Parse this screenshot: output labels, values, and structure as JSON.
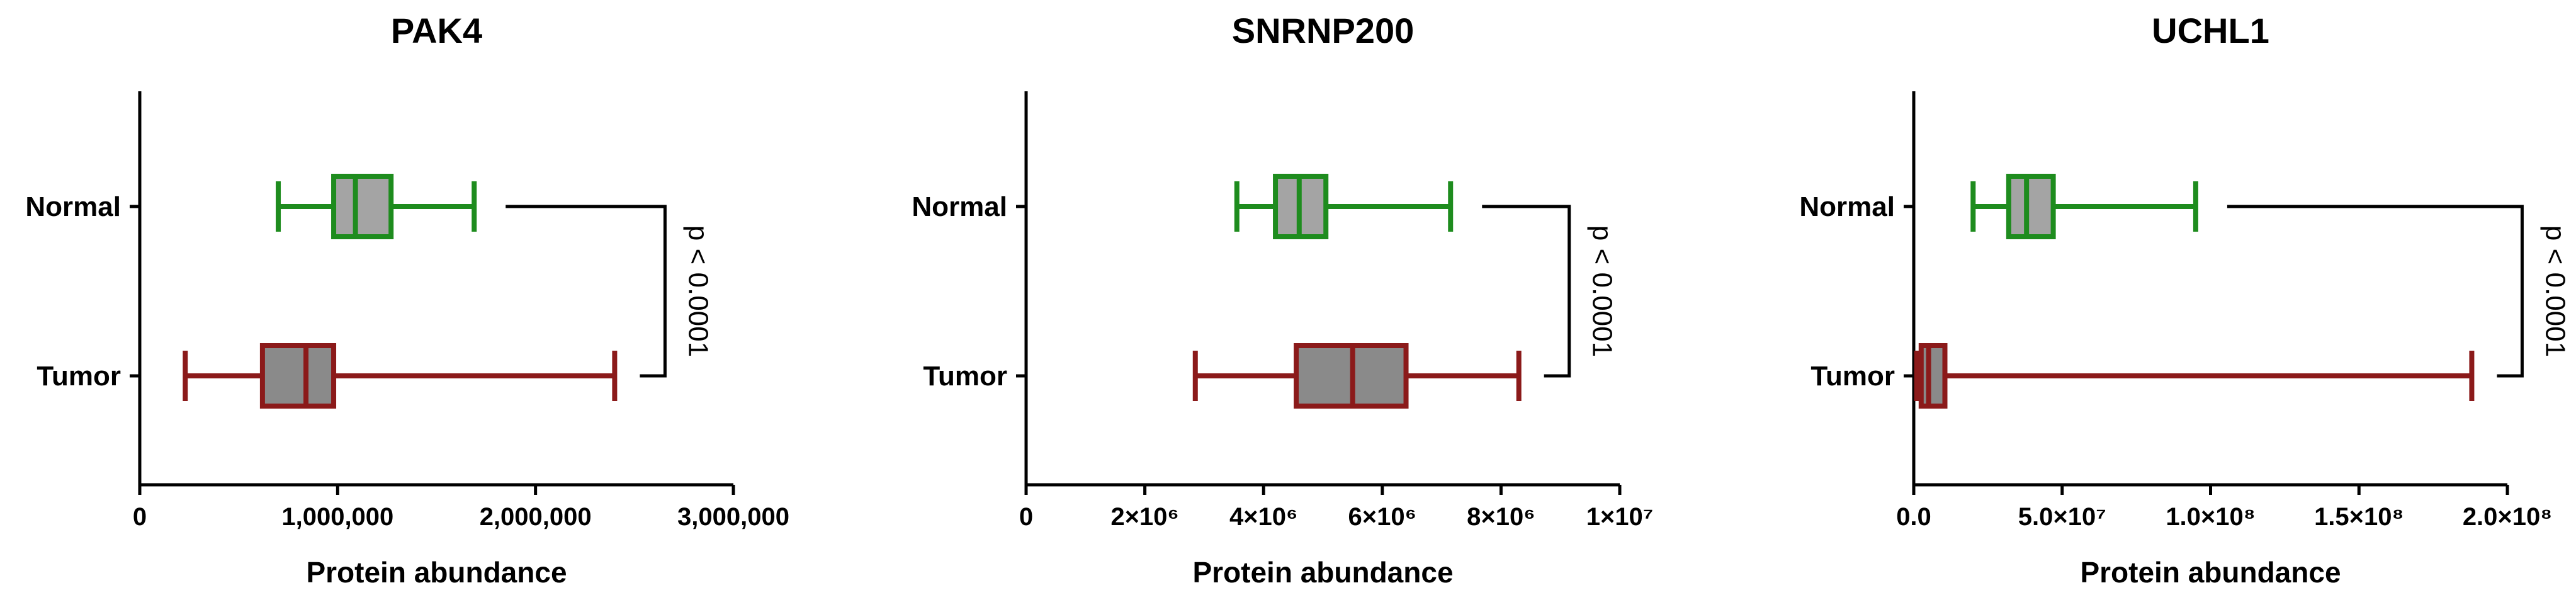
{
  "chart_data": [
    {
      "type": "box",
      "title": "PAK4",
      "xlabel": "Protein abundance",
      "xlim": [
        0,
        3000000
      ],
      "xticks": [
        {
          "value": 0,
          "label": "0"
        },
        {
          "value": 1000000,
          "label": "1,000,000"
        },
        {
          "value": 2000000,
          "label": "2,000,000"
        },
        {
          "value": 3000000,
          "label": "3,000,000"
        }
      ],
      "categories": [
        "Normal",
        "Tumor"
      ],
      "boxes": [
        {
          "name": "Normal",
          "min": 700000,
          "q1": 980000,
          "median": 1090000,
          "q3": 1270000,
          "max": 1690000,
          "color": "#1e8c1e"
        },
        {
          "name": "Tumor",
          "min": 230000,
          "q1": 620000,
          "median": 840000,
          "q3": 980000,
          "max": 2400000,
          "color": "#8b1a1a"
        }
      ],
      "annotation": "p < 0.0001"
    },
    {
      "type": "box",
      "title": "SNRNP200",
      "xlabel": "Protein abundance",
      "xlim": [
        0,
        10000000
      ],
      "xticks": [
        {
          "value": 0,
          "label": "0"
        },
        {
          "value": 2000000,
          "label": "2×10⁶"
        },
        {
          "value": 4000000,
          "label": "4×10⁶"
        },
        {
          "value": 6000000,
          "label": "6×10⁶"
        },
        {
          "value": 8000000,
          "label": "8×10⁶"
        },
        {
          "value": 10000000,
          "label": "1×10⁷"
        }
      ],
      "categories": [
        "Normal",
        "Tumor"
      ],
      "boxes": [
        {
          "name": "Normal",
          "min": 3550000,
          "q1": 4200000,
          "median": 4600000,
          "q3": 5050000,
          "max": 7150000,
          "color": "#1e8c1e"
        },
        {
          "name": "Tumor",
          "min": 2850000,
          "q1": 4550000,
          "median": 5500000,
          "q3": 6400000,
          "max": 8300000,
          "color": "#8b1a1a"
        }
      ],
      "annotation": "p < 0.0001"
    },
    {
      "type": "box",
      "title": "UCHL1",
      "xlabel": "Protein abundance",
      "xlim": [
        0,
        200000000
      ],
      "xticks": [
        {
          "value": 0,
          "label": "0.0"
        },
        {
          "value": 50000000,
          "label": "5.0×10⁷"
        },
        {
          "value": 100000000,
          "label": "1.0×10⁸"
        },
        {
          "value": 150000000,
          "label": "1.5×10⁸"
        },
        {
          "value": 200000000,
          "label": "2.0×10⁸"
        }
      ],
      "categories": [
        "Normal",
        "Tumor"
      ],
      "boxes": [
        {
          "name": "Normal",
          "min": 20000000,
          "q1": 32000000,
          "median": 38000000,
          "q3": 47000000,
          "max": 95000000,
          "color": "#1e8c1e"
        },
        {
          "name": "Tumor",
          "min": 1000000,
          "q1": 2500000,
          "median": 5000000,
          "q3": 10500000,
          "max": 188000000,
          "color": "#8b1a1a"
        }
      ],
      "annotation": "p < 0.0001"
    }
  ]
}
